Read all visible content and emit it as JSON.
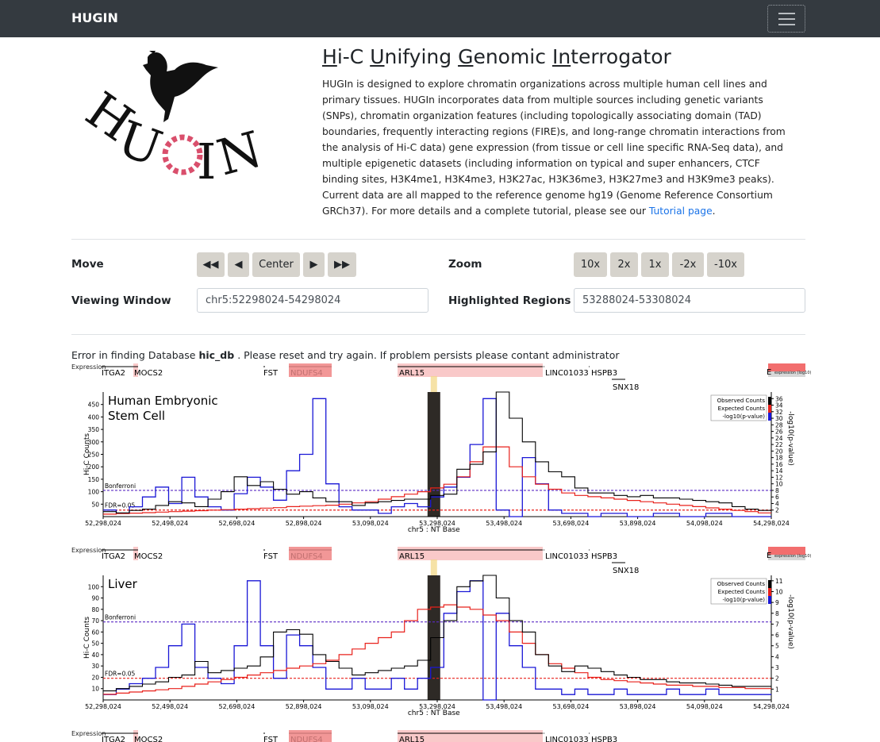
{
  "nav": {
    "brand": "HUGIN",
    "toggle_icon": "hamburger-icon"
  },
  "logo": {
    "text": "HUGIN",
    "icon": "raven-logo"
  },
  "header": {
    "title_parts": [
      "H",
      "i-C ",
      "U",
      "nifying ",
      "G",
      "enomic ",
      "In",
      "terrogator"
    ],
    "intro": "HUGIn is designed to explore chromatin organizations across multiple human cell lines and primary tissues. HUGIn incorporates data from multiple sources including genetic variants (SNPs), chromatin organization features (including topologically associating domain (TAD) boundaries, frequently interacting regions (FIRE)s, and long-range chromatin interactions from the analysis of Hi-C data) gene expression (from tissue or cell line specific RNA-Seq data), and multiple epigenetic datasets (including information on typical and super enhancers, CTCF binding sites, H3K4me1, H3K4me3, H3K27ac, H3K36me3, H3K27me3 and H3K9me3 peaks). Current data are all mapped to the reference genome hg19 (Genome Reference Consortium GRCh37). For more details and a complete tutorial, please see our ",
    "tutorial_link": "Tutorial page",
    "intro_end": "."
  },
  "controls": {
    "move_label": "Move",
    "move_buttons": [
      "◀◀",
      "◀",
      "Center",
      "▶",
      "▶▶"
    ],
    "zoom_label": "Zoom",
    "zoom_buttons": [
      "10x",
      "2x",
      "1x",
      "-2x",
      "-10x"
    ],
    "window_label": "Viewing Window",
    "window_value": "chr5:52298024-54298024",
    "highlight_label": "Highlighted Regions",
    "highlight_value": "53288024-53308024"
  },
  "error": {
    "prefix": "Error in finding Database ",
    "db": "hic_db",
    "suffix": " . Please reset and try again. If problem persists please contant administrator"
  },
  "genes": {
    "expression_label": "Expression",
    "scale_label": "expression (log10)",
    "e_label": "E",
    "names": [
      "ITGA2",
      "MOCS2",
      "FST",
      "NDUFS4",
      "ARL15",
      "LINC01033",
      "HSPB3",
      "SNX18"
    ]
  },
  "chart_common": {
    "x_ticks": [
      "52,298,024",
      "52,498,024",
      "52,698,024",
      "52,898,024",
      "53,098,024",
      "53,298,024",
      "53,498,024",
      "53,698,024",
      "53,898,024",
      "54,098,024",
      "54,298,024"
    ],
    "x_label": "chr5 : NT Base",
    "y_label": "Hi-C Counts",
    "y2_label": "-log10(p-value)",
    "legend": [
      "Observed Counts",
      "Expected Counts",
      "-log10(p-value)"
    ],
    "bonferroni_label": "Bonferroni",
    "fdr_label": "FDR=0.05",
    "colors": {
      "observed": "#000000",
      "expected": "#e8211b",
      "pvalue": "#1a17d6",
      "bonferroni": "#5b2bc4",
      "fdr": "#e8211b",
      "highlight": "#f2d580",
      "bait": "#2e2a26",
      "gene_fill": "#f9c9c9",
      "gene_strong": "#f08b8b"
    }
  },
  "chart_data": [
    {
      "type": "line",
      "title": "Human Embryonic Stem Cell",
      "ylim": [
        0,
        500
      ],
      "y_ticks": [
        "50",
        "100",
        "150",
        "200",
        "250",
        "300",
        "350",
        "400",
        "450"
      ],
      "y2_ticks": [
        "2",
        "4",
        "6",
        "8",
        "10",
        "12",
        "14",
        "16",
        "18",
        "20",
        "22",
        "24",
        "26",
        "28",
        "30",
        "32",
        "34",
        "36"
      ],
      "bonferroni": 8,
      "fdr": 2,
      "y2lim": [
        0,
        38
      ],
      "x_range": [
        52298024,
        54298024
      ],
      "bins_start": 52298024,
      "bin_size": 40000,
      "observed": [
        20,
        15,
        25,
        30,
        45,
        60,
        55,
        40,
        70,
        100,
        160,
        125,
        140,
        110,
        90,
        100,
        75,
        60,
        60,
        45,
        55,
        60,
        65,
        70,
        70,
        85,
        90,
        190,
        210,
        260,
        500,
        395,
        300,
        220,
        180,
        160,
        115,
        95,
        95,
        85,
        80,
        85,
        75,
        75,
        70,
        65,
        60,
        55,
        40,
        30,
        25
      ],
      "expected": [
        10,
        12,
        14,
        16,
        18,
        20,
        22,
        24,
        26,
        28,
        30,
        32,
        34,
        36,
        40,
        42,
        44,
        46,
        50,
        55,
        60,
        70,
        80,
        90,
        100,
        115,
        130,
        160,
        220,
        280,
        280,
        200,
        160,
        130,
        110,
        95,
        85,
        80,
        75,
        70,
        65,
        60,
        55,
        50,
        45,
        40,
        35,
        30,
        25,
        20,
        15
      ],
      "pvalue": [
        2,
        1,
        3,
        6,
        9,
        4,
        12,
        6,
        3,
        2,
        7,
        12,
        9,
        5,
        14,
        19,
        36,
        10,
        3,
        2,
        2,
        1,
        3,
        4,
        3,
        6,
        9,
        12,
        22,
        36,
        2,
        0,
        18,
        10,
        2,
        1,
        1,
        0,
        1,
        1,
        0,
        0,
        1,
        1,
        0,
        0,
        1,
        1,
        0,
        0,
        0
      ],
      "hi_text": "Human Embryonic",
      "hi_text2": "Stem Cell"
    },
    {
      "type": "line",
      "title": "Liver",
      "ylim": [
        0,
        110
      ],
      "y_ticks": [
        "10",
        "20",
        "30",
        "40",
        "50",
        "60",
        "70",
        "80",
        "90",
        "100"
      ],
      "y2_ticks": [
        "1",
        "2",
        "3",
        "4",
        "5",
        "6",
        "7",
        "8",
        "9",
        "10",
        "11"
      ],
      "bonferroni": 7.2,
      "fdr": 2,
      "y2lim": [
        0,
        11.5
      ],
      "x_range": [
        52298024,
        54298024
      ],
      "bins_start": 52298024,
      "bin_size": 40000,
      "observed": [
        8,
        10,
        12,
        14,
        16,
        20,
        22,
        34,
        24,
        26,
        28,
        30,
        38,
        60,
        62,
        58,
        40,
        34,
        28,
        22,
        24,
        26,
        28,
        30,
        35,
        55,
        70,
        100,
        105,
        110,
        90,
        70,
        60,
        40,
        30,
        25,
        30,
        28,
        25,
        22,
        20,
        18,
        18,
        16,
        15,
        15,
        14,
        13,
        12,
        12,
        12
      ],
      "expected": [
        5,
        6,
        7,
        8,
        9,
        10,
        12,
        14,
        16,
        18,
        20,
        22,
        24,
        26,
        28,
        30,
        32,
        35,
        40,
        45,
        50,
        55,
        60,
        70,
        80,
        82,
        84,
        82,
        80,
        75,
        70,
        60,
        50,
        40,
        32,
        28,
        24,
        20,
        18,
        17,
        16,
        15,
        14,
        13,
        13,
        12,
        12,
        11,
        11,
        10,
        10
      ],
      "pvalue": [
        0.5,
        1,
        1.5,
        2,
        3,
        5,
        7,
        3,
        2,
        1.5,
        5,
        11,
        5,
        2,
        6,
        5,
        3,
        1,
        1,
        2,
        1,
        1,
        2,
        1,
        2,
        3,
        8,
        10,
        11,
        0,
        8,
        5,
        3,
        1,
        1,
        0.5,
        1,
        0.5,
        0.5,
        1,
        0.5,
        0.5,
        0.5,
        1,
        0.5,
        0.5,
        1,
        0.5,
        0.5,
        0.5,
        0.5
      ]
    }
  ]
}
